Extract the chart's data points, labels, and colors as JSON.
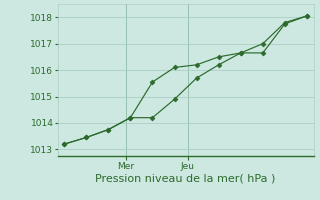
{
  "line1_x": [
    0,
    1,
    2,
    3,
    4,
    5,
    6,
    7,
    8,
    9,
    10,
    11
  ],
  "line1_y": [
    1013.2,
    1013.45,
    1013.75,
    1014.2,
    1015.55,
    1016.1,
    1016.2,
    1016.5,
    1016.65,
    1017.0,
    1017.8,
    1018.05
  ],
  "line2_x": [
    0,
    1,
    2,
    3,
    4,
    5,
    6,
    7,
    8,
    9,
    10,
    11
  ],
  "line2_y": [
    1013.2,
    1013.45,
    1013.75,
    1014.2,
    1014.2,
    1014.9,
    1015.7,
    1016.2,
    1016.65,
    1016.65,
    1017.75,
    1018.05
  ],
  "color": "#2d6a2d",
  "bg_color": "#cce8e0",
  "grid_color": "#aacfc5",
  "ylim": [
    1012.75,
    1018.5
  ],
  "yticks": [
    1013,
    1014,
    1015,
    1016,
    1017,
    1018
  ],
  "xlim": [
    -0.3,
    11.3
  ],
  "mer_x": 2.8,
  "jeu_x": 5.6,
  "xtick_labels": [
    "Mer",
    "Jeu"
  ],
  "xlabel": "Pression niveau de la mer( hPa )",
  "xlabel_fontsize": 8,
  "tick_fontsize": 6.5
}
